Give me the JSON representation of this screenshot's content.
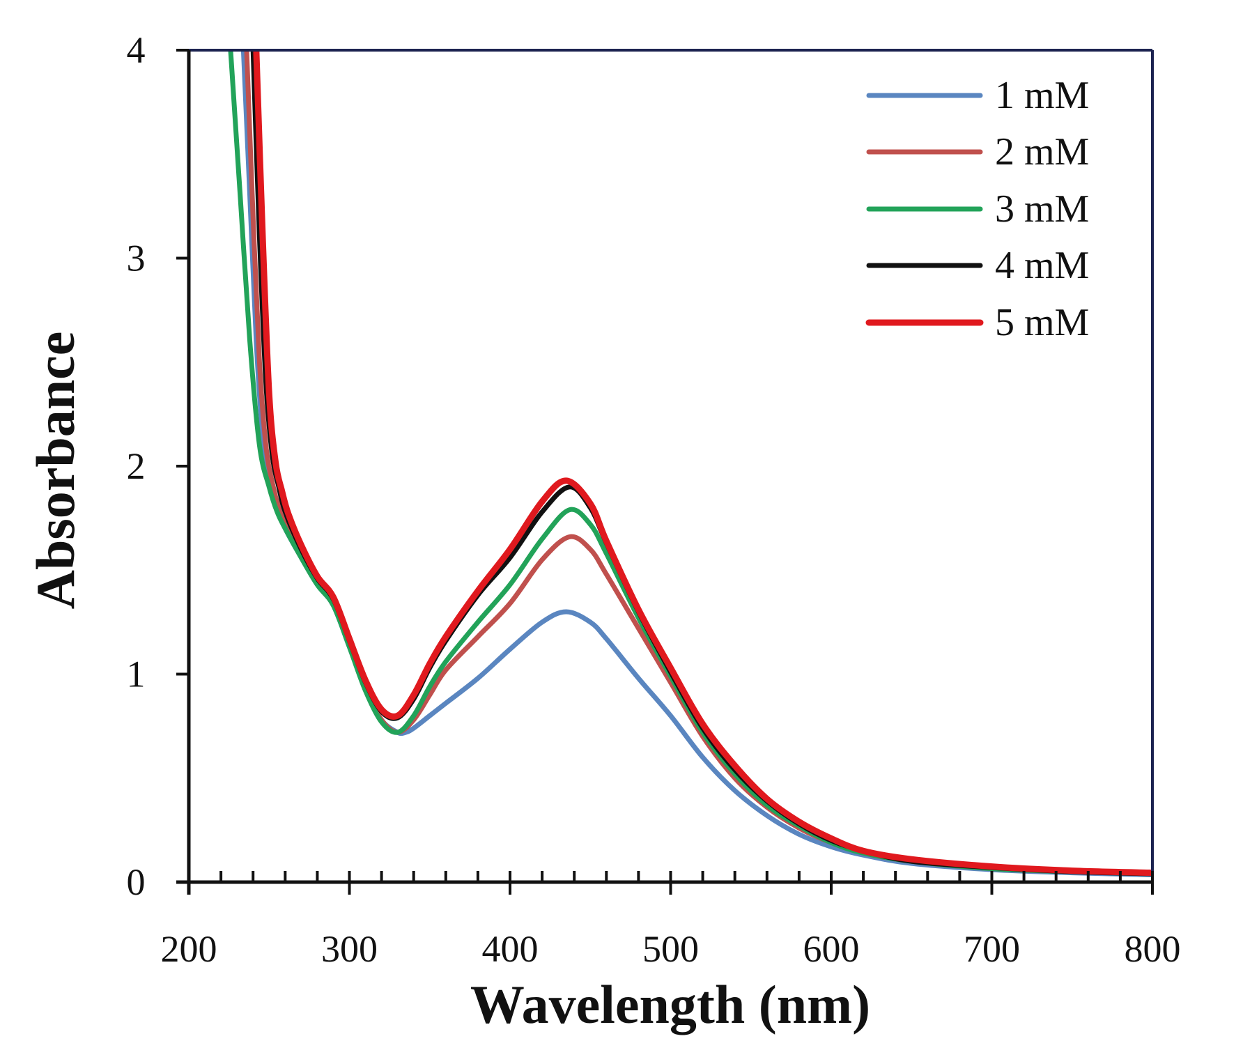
{
  "chart_data": {
    "type": "line",
    "title": "",
    "xlabel": "Wavelength (nm)",
    "ylabel": "Absorbance",
    "xlim": [
      200,
      800
    ],
    "ylim": [
      0,
      4
    ],
    "xticks": [
      "200",
      "300",
      "400",
      "500",
      "600",
      "700",
      "800"
    ],
    "yticks": [
      "0",
      "1",
      "2",
      "3",
      "4"
    ],
    "legend_position": "top-right",
    "grid": false,
    "series": [
      {
        "name": "1 mM",
        "color": "#5a86c0",
        "x": [
          234,
          238,
          242,
          246,
          250,
          255,
          260,
          270,
          280,
          290,
          300,
          310,
          320,
          330,
          335,
          340,
          350,
          360,
          380,
          400,
          420,
          435,
          450,
          460,
          480,
          500,
          520,
          540,
          560,
          580,
          600,
          620,
          650,
          700,
          750,
          800
        ],
        "y": [
          4.0,
          3.3,
          2.6,
          2.15,
          1.95,
          1.8,
          1.7,
          1.56,
          1.43,
          1.33,
          1.13,
          0.93,
          0.78,
          0.72,
          0.72,
          0.74,
          0.8,
          0.86,
          0.98,
          1.12,
          1.25,
          1.3,
          1.25,
          1.17,
          0.98,
          0.8,
          0.6,
          0.44,
          0.32,
          0.23,
          0.17,
          0.13,
          0.09,
          0.06,
          0.045,
          0.035
        ]
      },
      {
        "name": "2 mM",
        "color": "#c0504d",
        "x": [
          236,
          240,
          244,
          248,
          252,
          256,
          260,
          270,
          280,
          290,
          300,
          310,
          320,
          330,
          340,
          350,
          360,
          380,
          400,
          420,
          437,
          450,
          460,
          480,
          500,
          520,
          540,
          560,
          580,
          600,
          620,
          650,
          700,
          750,
          800
        ],
        "y": [
          4.0,
          3.2,
          2.5,
          2.1,
          1.92,
          1.8,
          1.72,
          1.58,
          1.45,
          1.35,
          1.14,
          0.93,
          0.78,
          0.72,
          0.78,
          0.9,
          1.02,
          1.18,
          1.34,
          1.55,
          1.66,
          1.6,
          1.48,
          1.22,
          0.96,
          0.7,
          0.5,
          0.36,
          0.26,
          0.19,
          0.14,
          0.1,
          0.065,
          0.05,
          0.04
        ]
      },
      {
        "name": "3 mM",
        "color": "#22a359",
        "x": [
          226,
          232,
          238,
          244,
          250,
          255,
          260,
          270,
          280,
          290,
          300,
          310,
          320,
          330,
          340,
          350,
          360,
          380,
          400,
          420,
          437,
          450,
          460,
          480,
          500,
          520,
          540,
          560,
          580,
          600,
          620,
          650,
          700,
          750,
          800
        ],
        "y": [
          4.0,
          3.3,
          2.6,
          2.1,
          1.9,
          1.78,
          1.7,
          1.56,
          1.43,
          1.33,
          1.13,
          0.92,
          0.77,
          0.72,
          0.8,
          0.94,
          1.06,
          1.25,
          1.43,
          1.65,
          1.79,
          1.72,
          1.58,
          1.27,
          0.99,
          0.72,
          0.52,
          0.37,
          0.27,
          0.19,
          0.14,
          0.1,
          0.065,
          0.05,
          0.04
        ]
      },
      {
        "name": "4 mM",
        "color": "#111111",
        "x": [
          240,
          244,
          248,
          252,
          256,
          260,
          270,
          280,
          290,
          300,
          310,
          320,
          330,
          340,
          350,
          360,
          380,
          400,
          420,
          437,
          450,
          460,
          480,
          500,
          520,
          540,
          560,
          580,
          600,
          620,
          650,
          700,
          750,
          800
        ],
        "y": [
          4.0,
          3.1,
          2.4,
          2.05,
          1.9,
          1.78,
          1.6,
          1.46,
          1.36,
          1.16,
          0.96,
          0.82,
          0.79,
          0.88,
          1.03,
          1.16,
          1.38,
          1.56,
          1.78,
          1.9,
          1.8,
          1.63,
          1.3,
          1.01,
          0.74,
          0.54,
          0.39,
          0.28,
          0.2,
          0.15,
          0.1,
          0.07,
          0.05,
          0.04
        ]
      },
      {
        "name": "5 mM",
        "color": "#e0191e",
        "x": [
          242,
          246,
          250,
          254,
          258,
          262,
          270,
          280,
          290,
          300,
          310,
          320,
          330,
          340,
          350,
          360,
          380,
          400,
          420,
          435,
          450,
          460,
          480,
          500,
          520,
          540,
          560,
          580,
          600,
          620,
          650,
          700,
          750,
          800
        ],
        "y": [
          4.0,
          3.1,
          2.35,
          2.02,
          1.88,
          1.77,
          1.62,
          1.47,
          1.37,
          1.17,
          0.97,
          0.83,
          0.8,
          0.9,
          1.05,
          1.18,
          1.4,
          1.6,
          1.83,
          1.93,
          1.82,
          1.64,
          1.31,
          1.03,
          0.76,
          0.56,
          0.4,
          0.29,
          0.21,
          0.15,
          0.11,
          0.075,
          0.055,
          0.045
        ]
      }
    ]
  }
}
